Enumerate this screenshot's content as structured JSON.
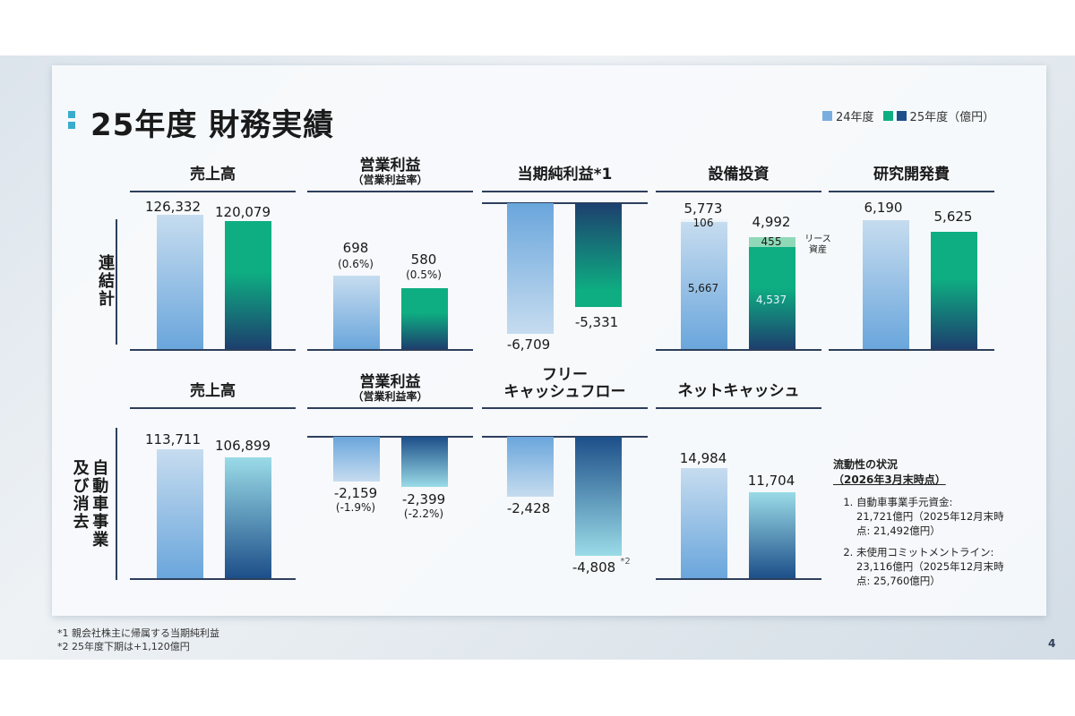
{
  "title": "25年度 財務実績",
  "legend": {
    "fy24": "24年度",
    "fy25": "25年度（億円）"
  },
  "colors": {
    "fy24_top": "#c6dcef",
    "fy24_bottom": "#6aa6dc",
    "fy25_top": "#0eae82",
    "fy25_bottom": "#1d3f6e",
    "teal_top": "#9adbe7",
    "teal_bottom": "#1d4f89",
    "axis": "#2d3f5c"
  },
  "rows": {
    "consolidated": "連結計",
    "auto": "自動車事業\n及び消去"
  },
  "headers": {
    "sales": "売上高",
    "op": "営業利益",
    "op_sub": "（営業利益率）",
    "ni": "当期純利益*1",
    "capex": "設備投資",
    "rd": "研究開発費",
    "sales2": "売上高",
    "op2": "営業利益",
    "op2_sub": "（営業利益率）",
    "fcf": "フリー\nキャッシュフロー",
    "netcash": "ネットキャッシュ"
  },
  "labels": {
    "sales24": "126,332",
    "sales25": "120,079",
    "op24": "698",
    "op24r": "(0.6%)",
    "op25": "580",
    "op25r": "(0.5%)",
    "ni24": "-6,709",
    "ni25": "-5,331",
    "capex24": "5,773",
    "capex24_top": "106",
    "capex24_main": "5,667",
    "capex25": "4,992",
    "capex25_top": "455",
    "capex25_main": "4,537",
    "lease": "リース\n資産",
    "rd24": "6,190",
    "rd25": "5,625",
    "asales24": "113,711",
    "asales25": "106,899",
    "aop24": "-2,159",
    "aop24r": "(-1.9%)",
    "aop25": "-2,399",
    "aop25r": "(-2.2%)",
    "fcf24": "-2,428",
    "fcf25": "-4,808",
    "fcf25_note": "*2",
    "nc24": "14,984",
    "nc25": "11,704"
  },
  "liquidity": {
    "heading": "流動性の状況",
    "heading2": "（2026年3月末時点）",
    "item1": "自動車事業手元資金:\n21,721億円（2025年12月末時\n点: 21,492億円）",
    "item2": "未使用コミットメントライン:\n23,116億円（2025年12月末時\n点: 25,760億円）"
  },
  "footnotes": {
    "f1": "*1 親会社株主に帰属する当期純利益",
    "f2": "*2 25年度下期は+1,120億円"
  },
  "page": "4",
  "chart_data": [
    {
      "type": "bar",
      "title": "売上高",
      "row": "連結計",
      "categories": [
        "24年度",
        "25年度"
      ],
      "values": [
        126332,
        120079
      ]
    },
    {
      "type": "bar",
      "title": "営業利益（営業利益率）",
      "row": "連結計",
      "categories": [
        "24年度",
        "25年度"
      ],
      "values": [
        698,
        580
      ],
      "ratios": [
        "0.6%",
        "0.5%"
      ]
    },
    {
      "type": "bar",
      "title": "当期純利益*1",
      "row": "連結計",
      "categories": [
        "24年度",
        "25年度"
      ],
      "values": [
        -6709,
        -5331
      ]
    },
    {
      "type": "bar",
      "title": "設備投資",
      "row": "連結計",
      "categories": [
        "24年度",
        "25年度"
      ],
      "values": [
        5773,
        4992
      ],
      "series": [
        {
          "name": "リース資産",
          "values": [
            106,
            455
          ]
        },
        {
          "name": "",
          "values": [
            5667,
            4537
          ]
        }
      ]
    },
    {
      "type": "bar",
      "title": "研究開発費",
      "row": "連結計",
      "categories": [
        "24年度",
        "25年度"
      ],
      "values": [
        6190,
        5625
      ]
    },
    {
      "type": "bar",
      "title": "売上高",
      "row": "自動車事業及び消去",
      "categories": [
        "24年度",
        "25年度"
      ],
      "values": [
        113711,
        106899
      ]
    },
    {
      "type": "bar",
      "title": "営業利益（営業利益率）",
      "row": "自動車事業及び消去",
      "categories": [
        "24年度",
        "25年度"
      ],
      "values": [
        -2159,
        -2399
      ],
      "ratios": [
        "-1.9%",
        "-2.2%"
      ]
    },
    {
      "type": "bar",
      "title": "フリーキャッシュフロー",
      "row": "自動車事業及び消去",
      "categories": [
        "24年度",
        "25年度"
      ],
      "values": [
        -2428,
        -4808
      ]
    },
    {
      "type": "bar",
      "title": "ネットキャッシュ",
      "row": "自動車事業及び消去",
      "categories": [
        "24年度",
        "25年度"
      ],
      "values": [
        14984,
        11704
      ]
    }
  ]
}
